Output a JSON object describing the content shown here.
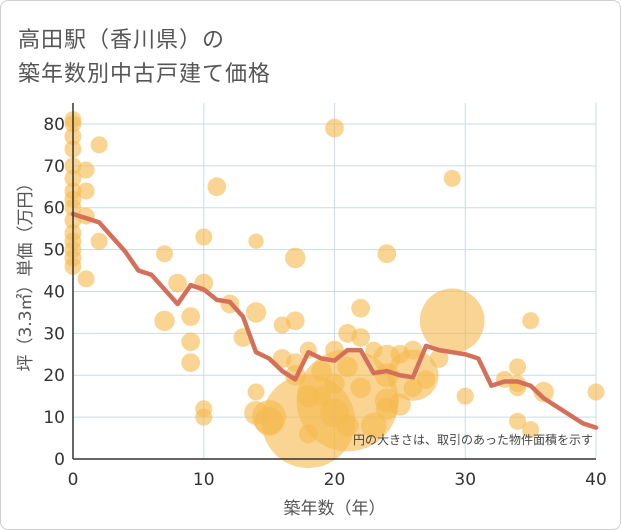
{
  "title_line1": "高田駅（香川県）の",
  "title_line2": "築年数別中古戸建て価格",
  "chart_data": {
    "type": "scatter",
    "xlabel": "築年数（年）",
    "ylabel": "坪（3.3㎡）単価（万円）",
    "xlim": [
      0,
      40
    ],
    "ylim": [
      0,
      85
    ],
    "xticks": [
      0,
      10,
      20,
      30,
      40
    ],
    "yticks": [
      0,
      10,
      20,
      30,
      40,
      50,
      60,
      70,
      80
    ],
    "grid": true,
    "annotation": "円の大きさは、取引のあった物件面積を示す",
    "colors": {
      "bubble": "#f5b94f",
      "line": "#d4705a",
      "grid": "#c9dbe8",
      "axis": "#333333"
    },
    "bubbles": [
      {
        "x": 0,
        "y": 81,
        "s": 1
      },
      {
        "x": 0,
        "y": 80,
        "s": 1
      },
      {
        "x": 0,
        "y": 77,
        "s": 1
      },
      {
        "x": 0,
        "y": 74,
        "s": 1
      },
      {
        "x": 0,
        "y": 70,
        "s": 1
      },
      {
        "x": 0,
        "y": 67,
        "s": 1
      },
      {
        "x": 0,
        "y": 64,
        "s": 1
      },
      {
        "x": 0,
        "y": 62,
        "s": 1
      },
      {
        "x": 0,
        "y": 60,
        "s": 1
      },
      {
        "x": 0,
        "y": 57,
        "s": 1
      },
      {
        "x": 0,
        "y": 54,
        "s": 1
      },
      {
        "x": 0,
        "y": 52,
        "s": 1
      },
      {
        "x": 0,
        "y": 50,
        "s": 1
      },
      {
        "x": 0,
        "y": 48,
        "s": 1
      },
      {
        "x": 0,
        "y": 46,
        "s": 1
      },
      {
        "x": 1,
        "y": 69,
        "s": 1
      },
      {
        "x": 1,
        "y": 64,
        "s": 1
      },
      {
        "x": 1,
        "y": 58,
        "s": 1
      },
      {
        "x": 1,
        "y": 43,
        "s": 1
      },
      {
        "x": 2,
        "y": 75,
        "s": 1
      },
      {
        "x": 2,
        "y": 52,
        "s": 1
      },
      {
        "x": 7,
        "y": 49,
        "s": 1
      },
      {
        "x": 7,
        "y": 33,
        "s": 1.2
      },
      {
        "x": 8,
        "y": 42,
        "s": 1.1
      },
      {
        "x": 9,
        "y": 34,
        "s": 1.1
      },
      {
        "x": 9,
        "y": 28,
        "s": 1.1
      },
      {
        "x": 9,
        "y": 23,
        "s": 1.1
      },
      {
        "x": 10,
        "y": 53,
        "s": 1
      },
      {
        "x": 10,
        "y": 42,
        "s": 1.1
      },
      {
        "x": 10,
        "y": 12,
        "s": 1
      },
      {
        "x": 10,
        "y": 10,
        "s": 1
      },
      {
        "x": 11,
        "y": 65,
        "s": 1.1
      },
      {
        "x": 12,
        "y": 37,
        "s": 1.1
      },
      {
        "x": 13,
        "y": 29,
        "s": 1.1
      },
      {
        "x": 14,
        "y": 52,
        "s": 0.9
      },
      {
        "x": 14,
        "y": 35,
        "s": 1.2
      },
      {
        "x": 14,
        "y": 16,
        "s": 1
      },
      {
        "x": 14,
        "y": 11,
        "s": 1.4
      },
      {
        "x": 15,
        "y": 10,
        "s": 2
      },
      {
        "x": 15,
        "y": 9,
        "s": 1.7
      },
      {
        "x": 16,
        "y": 32,
        "s": 1
      },
      {
        "x": 16,
        "y": 24,
        "s": 1.1
      },
      {
        "x": 17,
        "y": 48,
        "s": 1.2
      },
      {
        "x": 17,
        "y": 33,
        "s": 1.1
      },
      {
        "x": 17,
        "y": 23,
        "s": 1.1
      },
      {
        "x": 17,
        "y": 20,
        "s": 1.2
      },
      {
        "x": 18,
        "y": 9,
        "s": 5.5
      },
      {
        "x": 18,
        "y": 6,
        "s": 1.1
      },
      {
        "x": 18,
        "y": 15,
        "s": 1.3
      },
      {
        "x": 18,
        "y": 26,
        "s": 1
      },
      {
        "x": 19,
        "y": 21,
        "s": 1.2
      },
      {
        "x": 19,
        "y": 15,
        "s": 1.1
      },
      {
        "x": 20,
        "y": 79,
        "s": 1.1
      },
      {
        "x": 20,
        "y": 26,
        "s": 1.1
      },
      {
        "x": 20,
        "y": 18,
        "s": 1.2
      },
      {
        "x": 20,
        "y": 11,
        "s": 1.7
      },
      {
        "x": 21,
        "y": 30,
        "s": 1.1
      },
      {
        "x": 21,
        "y": 22,
        "s": 1.2
      },
      {
        "x": 21,
        "y": 14,
        "s": 6
      },
      {
        "x": 21,
        "y": 8,
        "s": 1.3
      },
      {
        "x": 22,
        "y": 36,
        "s": 1.1
      },
      {
        "x": 22,
        "y": 29,
        "s": 1.1
      },
      {
        "x": 22,
        "y": 17,
        "s": 1.2
      },
      {
        "x": 23,
        "y": 26,
        "s": 1
      },
      {
        "x": 23,
        "y": 8,
        "s": 1.5
      },
      {
        "x": 24,
        "y": 49,
        "s": 1.1
      },
      {
        "x": 24,
        "y": 24,
        "s": 1.6
      },
      {
        "x": 24,
        "y": 20,
        "s": 1.4
      },
      {
        "x": 24,
        "y": 14,
        "s": 1.4
      },
      {
        "x": 24,
        "y": 12,
        "s": 1.3
      },
      {
        "x": 25,
        "y": 25,
        "s": 1.1
      },
      {
        "x": 25,
        "y": 13,
        "s": 1.3
      },
      {
        "x": 26,
        "y": 26,
        "s": 1.1
      },
      {
        "x": 26,
        "y": 20,
        "s": 3
      },
      {
        "x": 26,
        "y": 17,
        "s": 1.1
      },
      {
        "x": 27,
        "y": 19,
        "s": 1.1
      },
      {
        "x": 28,
        "y": 24,
        "s": 1.1
      },
      {
        "x": 29,
        "y": 67,
        "s": 1
      },
      {
        "x": 29,
        "y": 33,
        "s": 3.8
      },
      {
        "x": 30,
        "y": 15,
        "s": 1
      },
      {
        "x": 33,
        "y": 19,
        "s": 1
      },
      {
        "x": 34,
        "y": 22,
        "s": 1
      },
      {
        "x": 34,
        "y": 18,
        "s": 1
      },
      {
        "x": 34,
        "y": 17,
        "s": 1
      },
      {
        "x": 34,
        "y": 9,
        "s": 1
      },
      {
        "x": 35,
        "y": 33,
        "s": 1
      },
      {
        "x": 35,
        "y": 7,
        "s": 1
      },
      {
        "x": 36,
        "y": 16,
        "s": 1.2
      },
      {
        "x": 40,
        "y": 16,
        "s": 1
      }
    ],
    "line": {
      "x": [
        0,
        1,
        2,
        3,
        4,
        5,
        6,
        7,
        8,
        9,
        10,
        11,
        12,
        13,
        14,
        15,
        16,
        17,
        18,
        19,
        20,
        21,
        22,
        23,
        24,
        25,
        26,
        27,
        28,
        29,
        30,
        31,
        32,
        33,
        34,
        35,
        36,
        37,
        38,
        39,
        40
      ],
      "y": [
        58.5,
        57.5,
        56.5,
        53,
        49.5,
        45,
        44,
        40.5,
        37,
        41.5,
        40.5,
        38,
        37.5,
        34,
        25.5,
        24,
        21,
        19,
        25.5,
        24,
        23.5,
        26,
        26,
        20.5,
        21,
        20,
        19.5,
        27,
        26,
        25.5,
        25,
        24,
        17.5,
        18.5,
        18.5,
        17.5,
        14.5,
        12.5,
        10.5,
        8.5,
        7.5
      ]
    }
  }
}
